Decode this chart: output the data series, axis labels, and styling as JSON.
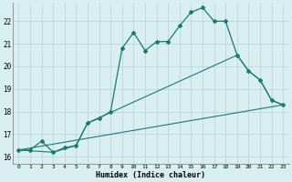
{
  "xlabel": "Humidex (Indice chaleur)",
  "bg_color": "#d8eef0",
  "grid_color": "#b8d8dc",
  "line_color": "#1a7a6e",
  "xlim": [
    -0.5,
    23.5
  ],
  "ylim": [
    15.7,
    22.8
  ],
  "yticks": [
    16,
    17,
    18,
    19,
    20,
    21,
    22
  ],
  "xticks": [
    0,
    1,
    2,
    3,
    4,
    5,
    6,
    7,
    8,
    9,
    10,
    11,
    12,
    13,
    14,
    15,
    16,
    17,
    18,
    19,
    20,
    21,
    22,
    23
  ],
  "line1_x": [
    0,
    1,
    2,
    3,
    4,
    5,
    6,
    7,
    8,
    9,
    10,
    11,
    12,
    13,
    14,
    15,
    16,
    17,
    18,
    19,
    20,
    21,
    22,
    23
  ],
  "line1_y": [
    16.3,
    16.3,
    16.7,
    16.2,
    16.4,
    16.5,
    17.5,
    17.7,
    18.0,
    20.8,
    21.5,
    20.7,
    21.1,
    21.1,
    21.8,
    22.4,
    22.6,
    22.0,
    22.0,
    20.5,
    19.8,
    19.4,
    18.5,
    18.3
  ],
  "line2_x": [
    0,
    3,
    5,
    6,
    19,
    20,
    21,
    22,
    23
  ],
  "line2_y": [
    16.3,
    16.2,
    16.5,
    17.5,
    20.5,
    19.8,
    19.4,
    18.5,
    18.3
  ],
  "line3_x": [
    0,
    23
  ],
  "line3_y": [
    16.3,
    18.3
  ]
}
